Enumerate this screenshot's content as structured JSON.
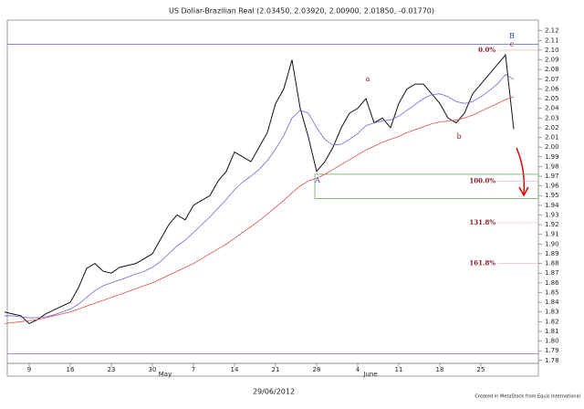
{
  "chart_data": {
    "type": "line",
    "title": "US Dollar-Brazilian Real (2.03450, 2.03920, 2.00900, 2.01850, -0.01770)",
    "categories": [
      null,
      null,
      null,
      "9",
      null,
      null,
      null,
      null,
      "16",
      null,
      null,
      null,
      null,
      "23",
      null,
      null,
      null,
      null,
      "30",
      null,
      null,
      null,
      null,
      "7",
      null,
      null,
      null,
      null,
      "14",
      null,
      null,
      null,
      null,
      "21",
      null,
      null,
      null,
      null,
      "28",
      null,
      null,
      null,
      null,
      "4",
      null,
      null,
      null,
      null,
      "11",
      null,
      null,
      null,
      null,
      "18",
      null,
      null,
      null,
      null,
      "25",
      null,
      null,
      null,
      null
    ],
    "month_labels": [
      null,
      null,
      null,
      null,
      null,
      null,
      null,
      null,
      null,
      null,
      null,
      null,
      null,
      null,
      null,
      null,
      null,
      null,
      "May",
      null,
      null,
      null,
      null,
      null,
      null,
      null,
      null,
      null,
      null,
      null,
      null,
      null,
      null,
      null,
      null,
      null,
      null,
      null,
      null,
      null,
      null,
      null,
      null,
      "June",
      null,
      null,
      null,
      null,
      null,
      null,
      null,
      null,
      null,
      null,
      null,
      null,
      null,
      null,
      null,
      null,
      null,
      null,
      null
    ],
    "series": [
      {
        "color": "#111111",
        "values": [
          1.83,
          1.828,
          1.826,
          1.818,
          1.822,
          1.828,
          1.832,
          1.836,
          1.84,
          1.855,
          1.875,
          1.88,
          1.872,
          1.87,
          1.876,
          1.878,
          1.88,
          1.885,
          1.89,
          1.905,
          1.92,
          1.93,
          1.925,
          1.94,
          1.945,
          1.95,
          1.965,
          1.975,
          1.995,
          1.99,
          1.985,
          2.0,
          2.015,
          2.045,
          2.06,
          2.09,
          2.04,
          2.01,
          1.975,
          1.985,
          2.0,
          2.02,
          2.035,
          2.04,
          2.05,
          2.025,
          2.03,
          2.02,
          2.045,
          2.06,
          2.065,
          2.065,
          2.055,
          2.045,
          2.03,
          2.025,
          2.035,
          2.055,
          2.065,
          2.075,
          2.085,
          2.095,
          2.0185
        ]
      },
      {
        "color": "#6b6bdc",
        "values": [
          1.826,
          1.826,
          1.825,
          1.824,
          1.824,
          1.825,
          1.827,
          1.83,
          1.833,
          1.838,
          1.845,
          1.852,
          1.857,
          1.86,
          1.863,
          1.866,
          1.869,
          1.872,
          1.876,
          1.882,
          1.89,
          1.898,
          1.904,
          1.912,
          1.92,
          1.928,
          1.937,
          1.946,
          1.956,
          1.964,
          1.97,
          1.977,
          1.986,
          1.998,
          2.012,
          2.03,
          2.038,
          2.035,
          2.02,
          2.008,
          2.002,
          2.003,
          2.008,
          2.014,
          2.022,
          2.025,
          2.027,
          2.028,
          2.032,
          2.038,
          2.044,
          2.05,
          2.054,
          2.055,
          2.052,
          2.047,
          2.045,
          2.047,
          2.052,
          2.058,
          2.065,
          2.075,
          2.07
        ]
      },
      {
        "color": "#e05050",
        "values": [
          1.818,
          1.819,
          1.82,
          1.821,
          1.822,
          1.824,
          1.826,
          1.828,
          1.83,
          1.833,
          1.836,
          1.839,
          1.842,
          1.845,
          1.848,
          1.851,
          1.854,
          1.857,
          1.86,
          1.864,
          1.868,
          1.872,
          1.876,
          1.88,
          1.885,
          1.89,
          1.895,
          1.9,
          1.906,
          1.912,
          1.918,
          1.924,
          1.931,
          1.938,
          1.945,
          1.953,
          1.96,
          1.965,
          1.968,
          1.972,
          1.977,
          1.982,
          1.987,
          1.992,
          1.997,
          2.001,
          2.005,
          2.008,
          2.011,
          2.015,
          2.018,
          2.021,
          2.024,
          2.026,
          2.027,
          2.028,
          2.03,
          2.033,
          2.037,
          2.041,
          2.045,
          2.049,
          2.052
        ]
      }
    ],
    "ylim": [
      1.777,
      2.131
    ],
    "yticks": [
      1.78,
      1.79,
      {
        "value": 1.8,
        "label": "1.80"
      },
      1.81,
      1.82,
      1.83,
      1.84,
      1.85,
      1.86,
      1.87,
      1.88,
      1.89,
      {
        "value": 1.9,
        "label": "1.90"
      },
      1.91,
      1.92,
      1.93,
      1.94,
      1.95,
      1.96,
      1.97,
      1.98,
      1.99,
      {
        "value": 2.0,
        "label": "2.00"
      },
      2.01,
      2.02,
      2.03,
      2.04,
      2.05,
      2.06,
      2.07,
      2.08,
      2.09,
      {
        "value": 2.1,
        "label": "2.10"
      },
      2.11,
      2.12
    ],
    "hlines": [
      {
        "value": 2.106,
        "color": "#7777cc"
      },
      {
        "value": 1.787,
        "color": "#9966aa"
      }
    ],
    "fib_levels": [
      {
        "label": "0.0%",
        "value": 2.1
      },
      {
        "label": "100.0%",
        "value": 1.965
      },
      {
        "label": "131.8%",
        "value": 1.922
      },
      {
        "label": "161.8%",
        "value": 1.88
      }
    ],
    "zone": {
      "values": [
        1.947,
        1.972
      ],
      "color": "#66aa66"
    },
    "wave_labels": [
      "A",
      "B",
      "a",
      "b",
      "c"
    ],
    "date": "29/06/2012",
    "credit": "Created in MetaStock from Equis International"
  }
}
